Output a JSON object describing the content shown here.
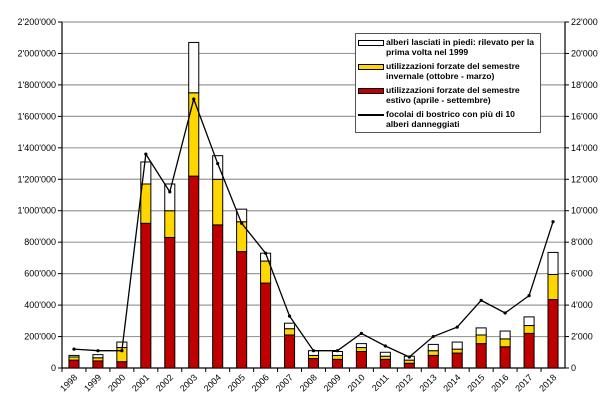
{
  "chart_data": {
    "type": "bar",
    "stacked": true,
    "categories": [
      "1998",
      "1999",
      "2000",
      "2001",
      "2002",
      "2003",
      "2004",
      "2005",
      "2006",
      "2007",
      "2008",
      "2009",
      "2010",
      "2011",
      "2012",
      "2013",
      "2014",
      "2015",
      "2016",
      "2017",
      "2018"
    ],
    "series": [
      {
        "name": "utilizzazioni forzate del semestre estivo (aprile - settembre)",
        "color": "#c00000",
        "axis": "left",
        "values": [
          50000,
          45000,
          40000,
          920000,
          830000,
          1220000,
          910000,
          740000,
          540000,
          210000,
          60000,
          55000,
          105000,
          55000,
          30000,
          80000,
          95000,
          155000,
          135000,
          220000,
          435000
        ]
      },
      {
        "name": "utilizzazioni forzate del semestre invernale (ottobre - marzo)",
        "color": "#ffd700",
        "axis": "left",
        "values": [
          20000,
          20000,
          90000,
          250000,
          170000,
          530000,
          290000,
          190000,
          140000,
          40000,
          20000,
          25000,
          25000,
          20000,
          20000,
          30000,
          25000,
          55000,
          50000,
          50000,
          160000
        ]
      },
      {
        "name": "alberi lasciati in piedi: rilevato per la prima volta nel 1999",
        "color": "#ffffff",
        "axis": "left",
        "values": [
          10000,
          20000,
          35000,
          140000,
          170000,
          320000,
          150000,
          80000,
          50000,
          35000,
          30000,
          25000,
          25000,
          25000,
          25000,
          40000,
          45000,
          45000,
          50000,
          55000,
          140000
        ]
      },
      {
        "name": "focolai di bostrico con più di 10 alberi danneggiati",
        "type": "line",
        "color": "#000000",
        "axis": "right",
        "values": [
          1200,
          1100,
          1100,
          13600,
          11200,
          17100,
          13000,
          9200,
          7300,
          3300,
          1100,
          1100,
          2200,
          1400,
          700,
          2000,
          2600,
          4300,
          3500,
          4600,
          9300
        ]
      }
    ],
    "y_left": {
      "range": [
        0,
        2200000
      ],
      "ticks": [
        "0",
        "200'000",
        "400'000",
        "600'000",
        "800'000",
        "1'000'000",
        "1'200'000",
        "1'400'000",
        "1'600'000",
        "1'800'000",
        "2'000'000",
        "2'200'000"
      ]
    },
    "y_right": {
      "range": [
        0,
        22000
      ],
      "ticks": [
        "0",
        "2'000",
        "4'000",
        "6'000",
        "8'000",
        "10'000",
        "12'000",
        "14'000",
        "16'000",
        "18'000",
        "20'000",
        "22'000"
      ]
    },
    "grid": true,
    "legend_placement": "top-right"
  }
}
